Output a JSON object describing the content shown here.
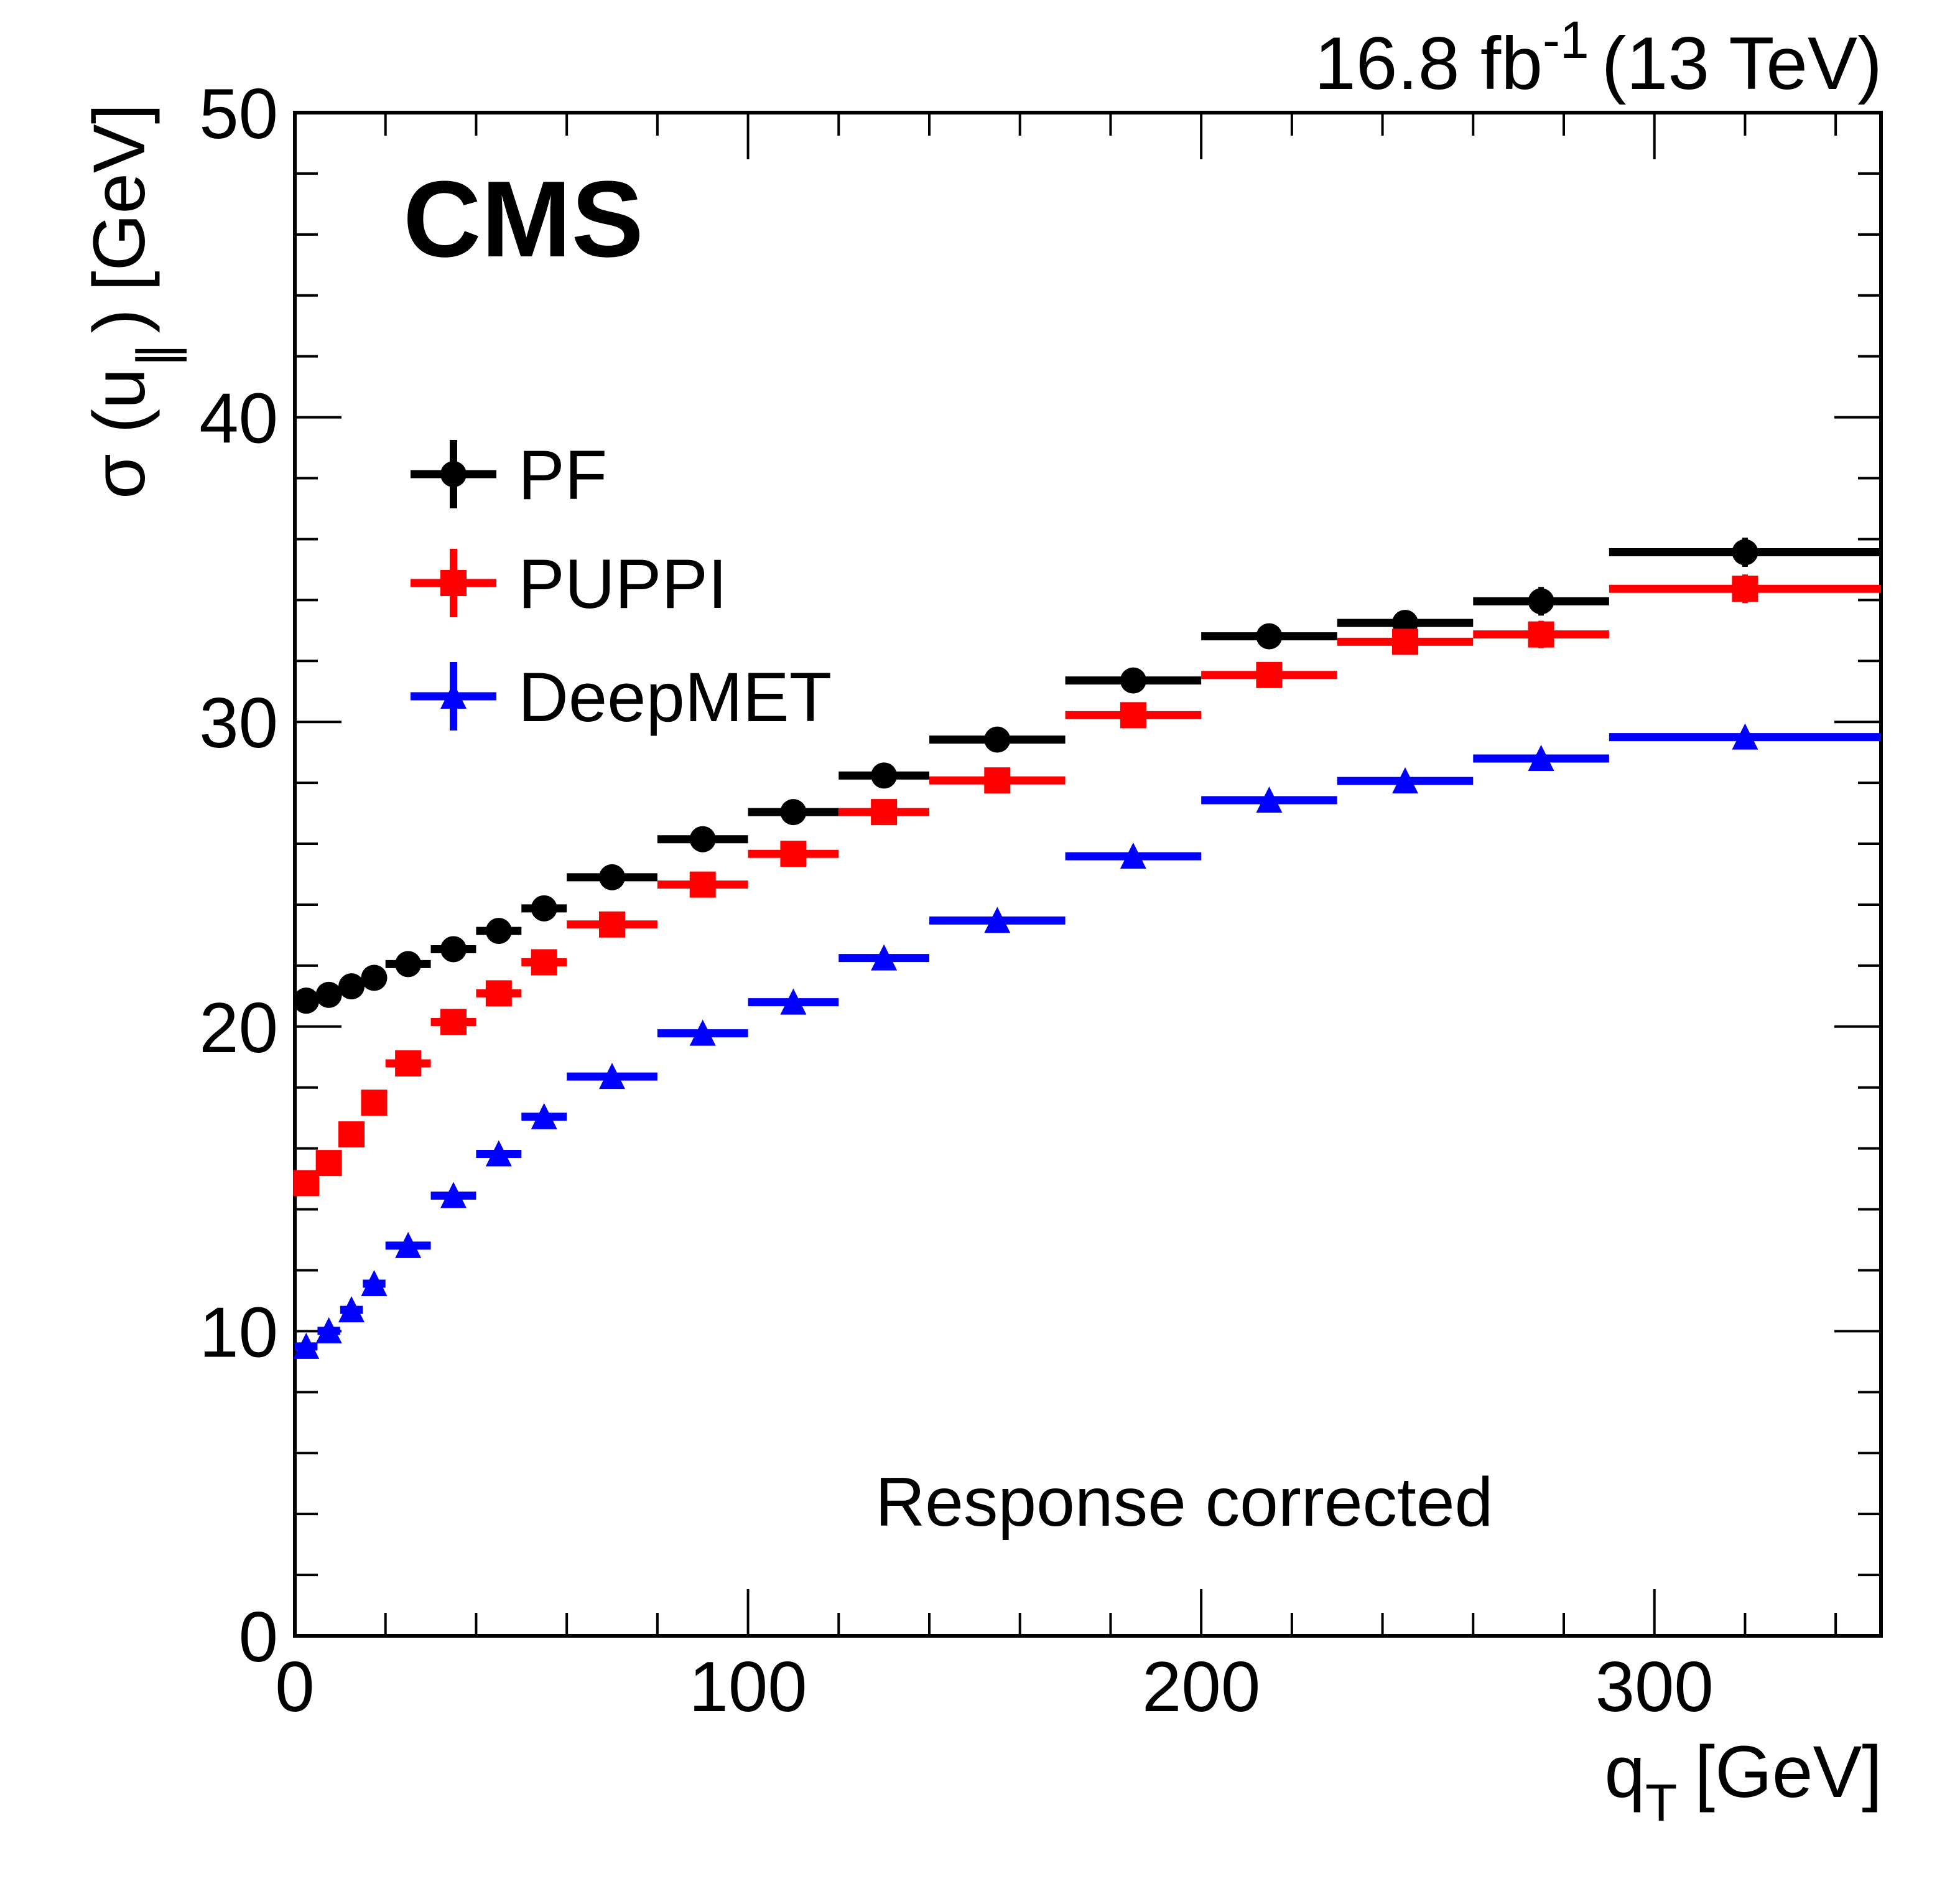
{
  "chart_data": {
    "type": "scatter",
    "title": "",
    "experiment_label": "CMS",
    "lumi_label": {
      "value": "16.8 fb",
      "superscript": "-1",
      "energy": "(13 TeV)"
    },
    "annotation": "Response corrected",
    "xlabel": {
      "main": "q",
      "subscript": "T",
      "unit": "[GeV]"
    },
    "ylabel": {
      "main": "σ (u",
      "subscript": "∥",
      "close": ")",
      "unit": "[GeV]"
    },
    "xlim": [
      0,
      350
    ],
    "ylim": [
      0,
      50
    ],
    "x_major_ticks": [
      0,
      100,
      200,
      300
    ],
    "x_tick_labels": [
      "0",
      "100",
      "200",
      "300"
    ],
    "x_minor_step": 20,
    "y_major_ticks": [
      0,
      10,
      20,
      30,
      40,
      50
    ],
    "y_tick_labels": [
      "0",
      "10",
      "20",
      "30",
      "40",
      "50"
    ],
    "y_minor_step": 2,
    "grid": false,
    "legend_position": "top-left",
    "bins": [
      [
        0,
        5
      ],
      [
        5,
        10
      ],
      [
        10,
        15
      ],
      [
        15,
        20
      ],
      [
        20,
        30
      ],
      [
        30,
        40
      ],
      [
        40,
        50
      ],
      [
        50,
        60
      ],
      [
        60,
        80
      ],
      [
        80,
        100
      ],
      [
        100,
        120
      ],
      [
        120,
        140
      ],
      [
        140,
        170
      ],
      [
        170,
        200
      ],
      [
        200,
        230
      ],
      [
        230,
        260
      ],
      [
        260,
        290
      ],
      [
        290,
        350
      ]
    ],
    "series": [
      {
        "name": "PF",
        "color": "#000000",
        "marker": "circle",
        "values": [
          20.85,
          21.04,
          21.32,
          21.6,
          22.05,
          22.54,
          23.14,
          23.88,
          24.9,
          26.15,
          27.04,
          28.24,
          29.42,
          31.36,
          32.81,
          33.25,
          33.96,
          35.57
        ],
        "errors": [
          0.05,
          0.05,
          0.05,
          0.05,
          0.05,
          0.05,
          0.06,
          0.07,
          0.08,
          0.1,
          0.12,
          0.15,
          0.15,
          0.2,
          0.25,
          0.3,
          0.47,
          0.48
        ]
      },
      {
        "name": "PUPPI",
        "color": "#ff0000",
        "marker": "square",
        "values": [
          14.86,
          15.52,
          16.46,
          17.5,
          18.79,
          20.15,
          21.09,
          22.11,
          23.35,
          24.66,
          25.67,
          27.04,
          28.08,
          30.22,
          31.54,
          32.63,
          32.87,
          34.37
        ],
        "errors": [
          0.05,
          0.05,
          0.05,
          0.05,
          0.05,
          0.05,
          0.06,
          0.07,
          0.08,
          0.1,
          0.12,
          0.15,
          0.15,
          0.2,
          0.25,
          0.3,
          0.45,
          0.47
        ]
      },
      {
        "name": "DeepMET",
        "color": "#0000ff",
        "marker": "triangle-up",
        "values": [
          9.5,
          10.01,
          10.7,
          11.56,
          12.81,
          14.45,
          15.82,
          17.04,
          18.36,
          19.78,
          20.8,
          22.25,
          23.48,
          25.59,
          27.43,
          28.06,
          28.8,
          29.5
        ],
        "errors": [
          0.05,
          0.05,
          0.05,
          0.05,
          0.05,
          0.05,
          0.05,
          0.05,
          0.06,
          0.07,
          0.08,
          0.1,
          0.1,
          0.12,
          0.15,
          0.18,
          0.2,
          0.2
        ]
      }
    ]
  }
}
